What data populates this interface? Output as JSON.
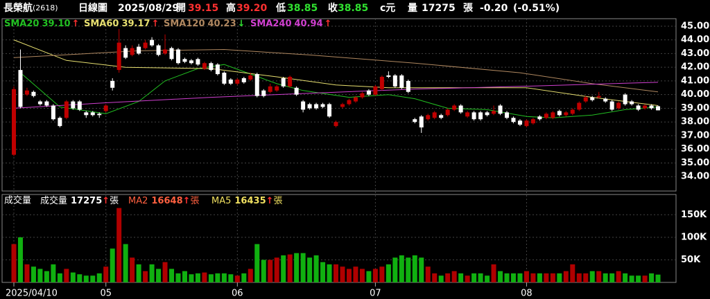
{
  "header": [
    {
      "text": "長榮航",
      "color": "#ffffff"
    },
    {
      "text": "(2618)",
      "color": "#ffffff"
    },
    {
      "text": "日線圖",
      "color": "#ffffff"
    },
    {
      "text": "2025/08/29",
      "color": "#ffffff"
    },
    {
      "text": "開",
      "color": "#ffffff"
    },
    {
      "text": "39.15",
      "color": "#ff3030"
    },
    {
      "text": "高",
      "color": "#ffffff"
    },
    {
      "text": "39.20",
      "color": "#ff3030"
    },
    {
      "text": "低",
      "color": "#ffffff"
    },
    {
      "text": "38.85",
      "color": "#30e030"
    },
    {
      "text": "收",
      "color": "#ffffff"
    },
    {
      "text": "38.85",
      "color": "#30e030"
    },
    {
      "text": "c元",
      "color": "#ffffff"
    },
    {
      "text": "量",
      "color": "#ffffff"
    },
    {
      "text": "17275",
      "color": "#ffffff"
    },
    {
      "text": "張",
      "color": "#ffffff"
    },
    {
      "text": "-0.20",
      "color": "#ffffff"
    },
    {
      "text": "(-0.51%)",
      "color": "#ffffff"
    }
  ],
  "chart_data": [
    {
      "type": "candlestick",
      "categories": [
        "2025/04/10",
        null,
        null,
        null,
        null,
        null,
        null,
        null,
        null,
        null,
        null,
        null,
        null,
        null,
        "05",
        null,
        null,
        null,
        null,
        null,
        null,
        null,
        null,
        null,
        null,
        null,
        null,
        null,
        null,
        null,
        null,
        null,
        null,
        null,
        "06",
        null,
        null,
        null,
        null,
        null,
        null,
        null,
        null,
        null,
        null,
        null,
        null,
        null,
        null,
        null,
        null,
        null,
        null,
        null,
        null,
        "07",
        null,
        null,
        null,
        null,
        null,
        null,
        null,
        null,
        null,
        null,
        null,
        null,
        null,
        null,
        null,
        null,
        null,
        null,
        null,
        null,
        null,
        null,
        "08",
        null,
        null,
        null,
        null,
        null,
        null,
        null,
        null,
        null,
        null,
        null,
        null,
        null,
        null,
        null,
        null,
        null,
        null,
        null,
        null
      ],
      "open": [
        35.6,
        41.8,
        40.0,
        40.2,
        39.5,
        39.5,
        39.2,
        38.3,
        38.3,
        39.5,
        39.5,
        38.7,
        38.7,
        38.6,
        38.8,
        41.0,
        41.8,
        43.4,
        42.9,
        43.5,
        43.4,
        44.0,
        43.6,
        43.0,
        43.4,
        43.3,
        42.6,
        42.5,
        42.6,
        41.9,
        42.3,
        42.2,
        41.6,
        41.1,
        40.8,
        41.2,
        41.1,
        41.5,
        40.3,
        40.2,
        40.3,
        41.2,
        40.6,
        40.5,
        39.5,
        39.3,
        39.3,
        39.3,
        39.3,
        37.7,
        39.1,
        39.3,
        39.5,
        39.8,
        40.3,
        40.0,
        40.4,
        41.4,
        41.4,
        41.4,
        41.0,
        38.2,
        38.4,
        38.2,
        38.3,
        38.5,
        38.5,
        38.9,
        39.2,
        38.4,
        38.7,
        38.7,
        38.7,
        38.6,
        39.2,
        38.7,
        38.3,
        38.1,
        37.7,
        37.9,
        38.4,
        38.3,
        38.3,
        38.8,
        38.5,
        38.6,
        38.9,
        39.5,
        39.8,
        39.8,
        39.7,
        39.5,
        39.0,
        40.0,
        39.5,
        39.2,
        39.0,
        39.2,
        39.15
      ],
      "high": [
        40.6,
        43.3,
        40.5,
        40.3,
        39.6,
        39.6,
        39.3,
        38.4,
        39.6,
        39.6,
        39.6,
        38.8,
        38.8,
        38.7,
        39.3,
        41.2,
        44.8,
        43.6,
        43.6,
        43.7,
        44.0,
        44.2,
        43.7,
        44.4,
        43.5,
        43.4,
        42.7,
        42.6,
        42.7,
        42.4,
        42.4,
        42.3,
        41.7,
        41.2,
        41.2,
        41.3,
        41.6,
        41.6,
        40.4,
        40.8,
        40.7,
        41.3,
        41.4,
        40.6,
        39.6,
        39.4,
        39.4,
        39.4,
        39.4,
        38.1,
        39.4,
        39.7,
        39.9,
        40.2,
        40.4,
        40.7,
        41.4,
        41.7,
        41.5,
        41.5,
        41.1,
        38.3,
        38.5,
        38.6,
        38.8,
        38.6,
        39.0,
        39.3,
        39.3,
        38.8,
        38.8,
        38.8,
        38.8,
        39.2,
        39.3,
        38.8,
        38.4,
        38.2,
        38.2,
        38.3,
        38.5,
        38.7,
        38.8,
        38.9,
        38.8,
        39.0,
        39.5,
        39.9,
        39.9,
        40.2,
        39.8,
        39.6,
        39.5,
        40.1,
        39.6,
        39.3,
        39.3,
        39.3,
        39.2
      ],
      "low": [
        35.5,
        39.0,
        39.9,
        39.8,
        39.2,
        39.1,
        38.1,
        37.6,
        38.2,
        38.9,
        38.8,
        38.3,
        38.4,
        38.3,
        38.7,
        40.3,
        41.6,
        42.6,
        42.8,
        42.9,
        43.3,
        43.5,
        42.8,
        42.9,
        42.5,
        42.2,
        42.3,
        42.2,
        42.1,
        41.8,
        41.7,
        41.4,
        40.7,
        40.7,
        40.7,
        40.8,
        41.0,
        39.8,
        39.8,
        40.1,
        40.2,
        40.5,
        40.5,
        39.9,
        38.7,
        38.9,
        38.9,
        39.0,
        38.3,
        37.6,
        39.0,
        39.2,
        39.4,
        39.7,
        39.9,
        39.9,
        40.3,
        41.2,
        40.5,
        40.4,
        40.1,
        37.9,
        37.2,
        38.1,
        38.2,
        38.2,
        38.4,
        38.8,
        38.6,
        38.3,
        38.1,
        38.1,
        38.4,
        38.5,
        38.5,
        38.2,
        37.9,
        37.7,
        37.6,
        37.8,
        38.1,
        38.2,
        38.2,
        38.4,
        38.4,
        38.5,
        38.8,
        39.4,
        39.5,
        39.7,
        39.4,
        38.8,
        38.9,
        39.2,
        39.2,
        38.8,
        38.9,
        38.9,
        38.85
      ],
      "close": [
        40.4,
        39.1,
        40.3,
        39.9,
        39.3,
        39.2,
        38.2,
        37.7,
        39.5,
        39.0,
        38.9,
        38.5,
        38.5,
        38.5,
        39.2,
        40.5,
        43.8,
        42.7,
        43.4,
        43.0,
        43.8,
        43.6,
        42.9,
        43.3,
        42.6,
        42.3,
        42.4,
        42.3,
        42.2,
        42.3,
        41.8,
        41.5,
        40.8,
        40.8,
        41.1,
        40.9,
        41.4,
        39.9,
        39.9,
        40.6,
        40.6,
        40.6,
        41.3,
        40.0,
        38.9,
        39.0,
        39.0,
        39.1,
        38.4,
        38.0,
        39.3,
        39.6,
        39.8,
        40.1,
        40.0,
        40.6,
        41.3,
        41.3,
        40.6,
        40.5,
        40.2,
        38.0,
        37.6,
        38.5,
        38.7,
        38.3,
        38.9,
        39.2,
        38.7,
        38.7,
        38.2,
        38.2,
        38.5,
        38.8,
        38.6,
        38.3,
        38.0,
        37.8,
        38.1,
        38.2,
        38.2,
        38.6,
        38.7,
        38.5,
        38.7,
        38.9,
        39.4,
        39.8,
        39.6,
        39.9,
        39.5,
        38.9,
        39.4,
        39.3,
        39.3,
        38.9,
        39.2,
        39.0,
        38.85
      ],
      "up_color": "#c00000",
      "down_color": "#ffffff",
      "lines": [
        {
          "name": "SMA20",
          "value_label": "39.10",
          "arrow": "↑",
          "arrow_color": "#ff3030",
          "color": "#22c022",
          "x": [
            1,
            7,
            14,
            19,
            23,
            28,
            32,
            36,
            40,
            44,
            51,
            57,
            61,
            66,
            72,
            78,
            82,
            88,
            93,
            98
          ],
          "values": [
            41.6,
            39.1,
            38.6,
            39.5,
            41.0,
            41.9,
            42.2,
            41.5,
            40.8,
            40.3,
            39.8,
            40.0,
            39.7,
            39.0,
            38.9,
            38.4,
            38.3,
            38.5,
            38.9,
            39.1
          ]
        },
        {
          "name": "SMA60",
          "value_label": "39.17",
          "arrow": "↑",
          "arrow_color": "#ff3030",
          "color": "#e8e070",
          "x": [
            0,
            8,
            17,
            30,
            40,
            49,
            57,
            72,
            78,
            88,
            98
          ],
          "values": [
            44.0,
            42.5,
            42.0,
            41.9,
            41.3,
            40.7,
            40.5,
            40.5,
            40.5,
            39.8,
            39.2
          ]
        },
        {
          "name": "SMA120",
          "value_label": "40.23",
          "arrow": "↓",
          "arrow_color": "#30e030",
          "color": "#b08860",
          "x": [
            0,
            19,
            32,
            45,
            61,
            77,
            88,
            98
          ],
          "values": [
            42.7,
            43.2,
            43.3,
            42.9,
            42.3,
            41.6,
            40.8,
            40.2
          ]
        },
        {
          "name": "SMA240",
          "value_label": "40.94",
          "arrow": "↑",
          "arrow_color": "#ff3030",
          "color": "#d040d0",
          "x": [
            0,
            14,
            30,
            45,
            61,
            77,
            98
          ],
          "values": [
            39.0,
            39.4,
            39.8,
            40.1,
            40.4,
            40.6,
            40.9
          ]
        }
      ],
      "ylim": [
        33.0,
        45.5
      ],
      "yticks": [
        {
          "value": 45,
          "label": "45.00"
        },
        {
          "value": 44,
          "label": "44.00"
        },
        {
          "value": 43,
          "label": "43.00"
        },
        {
          "value": 42,
          "label": "42.00"
        },
        {
          "value": 41,
          "label": "41.00"
        },
        {
          "value": 40,
          "label": "40.00"
        },
        {
          "value": 39,
          "label": "39.00"
        },
        {
          "value": 38,
          "label": "38.00"
        },
        {
          "value": 37,
          "label": "37.00"
        },
        {
          "value": 36,
          "label": "36.00"
        },
        {
          "value": 35,
          "label": "35.00"
        },
        {
          "value": 34,
          "label": "34.00"
        }
      ],
      "grid": true
    },
    {
      "type": "bar",
      "title": "成交量",
      "legend": [
        {
          "label": "成交量",
          "value": "17275",
          "arrow": "↑",
          "unit": "張",
          "color": "#ffffff"
        },
        {
          "label": "MA2",
          "value": "16648",
          "arrow": "↑",
          "unit": "張",
          "color": "#ff6040"
        },
        {
          "label": "MA5",
          "value": "16435",
          "arrow": "↑",
          "unit": "張",
          "color": "#f0e060"
        }
      ],
      "values": [
        85000,
        100000,
        40000,
        35000,
        30000,
        25000,
        40000,
        20000,
        30000,
        22000,
        18000,
        15000,
        15000,
        20000,
        35000,
        75000,
        165000,
        85000,
        55000,
        40000,
        25000,
        40000,
        30000,
        45000,
        30000,
        20000,
        25000,
        18000,
        20000,
        22000,
        18000,
        20000,
        20000,
        18000,
        15000,
        20000,
        30000,
        85000,
        50000,
        50000,
        55000,
        60000,
        62000,
        65000,
        65000,
        55000,
        60000,
        45000,
        40000,
        40000,
        35000,
        30000,
        35000,
        30000,
        25000,
        30000,
        35000,
        40000,
        55000,
        60000,
        55000,
        60000,
        55000,
        35000,
        20000,
        15000,
        20000,
        25000,
        20000,
        15000,
        20000,
        20000,
        15000,
        40000,
        25000,
        20000,
        20000,
        20000,
        25000,
        20000,
        20000,
        20000,
        20000,
        20000,
        25000,
        40000,
        20000,
        20000,
        25000,
        25000,
        20000,
        20000,
        25000,
        20000,
        15000,
        15000,
        15000,
        20000,
        17275
      ],
      "up_color": "#b00000",
      "down_color": "#10b010",
      "ylim": [
        0,
        195000
      ],
      "yticks": [
        {
          "value": 150000,
          "label": "150K"
        },
        {
          "value": 100000,
          "label": "100K"
        },
        {
          "value": 50000,
          "label": "50K"
        }
      ],
      "grid": true
    }
  ]
}
